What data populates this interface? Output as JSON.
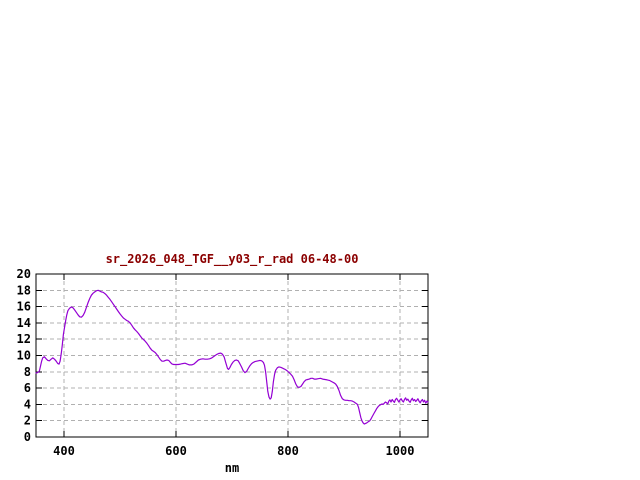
{
  "chart_data": {
    "type": "line",
    "title": "sr_2026_048_TGF__y03_r_rad 06-48-00",
    "xlabel": "nm",
    "ylabel": "",
    "xlim": [
      350,
      1050
    ],
    "ylim": [
      0,
      20
    ],
    "xticks": [
      400,
      600,
      800,
      1000
    ],
    "yticks": [
      0,
      2,
      4,
      6,
      8,
      10,
      12,
      14,
      16,
      18,
      20
    ],
    "grid": true,
    "legend": "none",
    "colors": {
      "line": "#9400d3",
      "title": "#8b0000",
      "axis_text": "#000000",
      "frame": "#000000",
      "grid": "#b0b0b0",
      "background": "#ffffff"
    },
    "series": [
      {
        "name": "sr_2026_048_TGF__y03_r_rad",
        "color": "#9400d3",
        "points": [
          [
            350,
            7.85
          ],
          [
            353,
            7.9
          ],
          [
            356,
            8.1
          ],
          [
            358,
            8.7
          ],
          [
            360,
            9.3
          ],
          [
            362,
            9.7
          ],
          [
            365,
            9.85
          ],
          [
            368,
            9.6
          ],
          [
            371,
            9.4
          ],
          [
            374,
            9.35
          ],
          [
            377,
            9.55
          ],
          [
            380,
            9.7
          ],
          [
            383,
            9.55
          ],
          [
            386,
            9.3
          ],
          [
            389,
            9.0
          ],
          [
            391,
            8.95
          ],
          [
            393,
            9.3
          ],
          [
            395,
            10.2
          ],
          [
            397,
            11.3
          ],
          [
            399,
            12.6
          ],
          [
            401,
            13.5
          ],
          [
            403,
            14.3
          ],
          [
            405,
            15.0
          ],
          [
            407,
            15.5
          ],
          [
            410,
            15.8
          ],
          [
            413,
            15.95
          ],
          [
            416,
            15.85
          ],
          [
            419,
            15.6
          ],
          [
            422,
            15.3
          ],
          [
            425,
            15.0
          ],
          [
            428,
            14.75
          ],
          [
            431,
            14.7
          ],
          [
            434,
            14.9
          ],
          [
            437,
            15.3
          ],
          [
            440,
            15.9
          ],
          [
            443,
            16.5
          ],
          [
            446,
            17.0
          ],
          [
            449,
            17.4
          ],
          [
            452,
            17.65
          ],
          [
            455,
            17.8
          ],
          [
            458,
            17.95
          ],
          [
            461,
            18.0
          ],
          [
            464,
            17.9
          ],
          [
            467,
            17.8
          ],
          [
            470,
            17.75
          ],
          [
            473,
            17.6
          ],
          [
            476,
            17.4
          ],
          [
            479,
            17.15
          ],
          [
            482,
            16.9
          ],
          [
            485,
            16.6
          ],
          [
            488,
            16.3
          ],
          [
            491,
            16.0
          ],
          [
            494,
            15.7
          ],
          [
            497,
            15.4
          ],
          [
            500,
            15.1
          ],
          [
            503,
            14.85
          ],
          [
            506,
            14.6
          ],
          [
            509,
            14.45
          ],
          [
            512,
            14.3
          ],
          [
            515,
            14.2
          ],
          [
            518,
            14.0
          ],
          [
            521,
            13.7
          ],
          [
            524,
            13.4
          ],
          [
            527,
            13.15
          ],
          [
            530,
            12.95
          ],
          [
            533,
            12.7
          ],
          [
            536,
            12.4
          ],
          [
            539,
            12.15
          ],
          [
            542,
            11.95
          ],
          [
            545,
            11.75
          ],
          [
            548,
            11.5
          ],
          [
            551,
            11.2
          ],
          [
            554,
            10.9
          ],
          [
            557,
            10.65
          ],
          [
            560,
            10.5
          ],
          [
            563,
            10.35
          ],
          [
            566,
            10.1
          ],
          [
            569,
            9.8
          ],
          [
            572,
            9.5
          ],
          [
            575,
            9.3
          ],
          [
            578,
            9.3
          ],
          [
            581,
            9.4
          ],
          [
            584,
            9.45
          ],
          [
            587,
            9.4
          ],
          [
            590,
            9.15
          ],
          [
            593,
            8.95
          ],
          [
            596,
            8.9
          ],
          [
            600,
            8.9
          ],
          [
            604,
            8.9
          ],
          [
            608,
            8.95
          ],
          [
            612,
            9.0
          ],
          [
            616,
            9.05
          ],
          [
            620,
            8.95
          ],
          [
            624,
            8.85
          ],
          [
            628,
            8.85
          ],
          [
            632,
            8.95
          ],
          [
            636,
            9.2
          ],
          [
            640,
            9.45
          ],
          [
            644,
            9.55
          ],
          [
            648,
            9.6
          ],
          [
            652,
            9.55
          ],
          [
            656,
            9.55
          ],
          [
            660,
            9.6
          ],
          [
            664,
            9.7
          ],
          [
            668,
            9.9
          ],
          [
            672,
            10.1
          ],
          [
            676,
            10.25
          ],
          [
            680,
            10.3
          ],
          [
            683,
            10.15
          ],
          [
            686,
            9.8
          ],
          [
            689,
            9.1
          ],
          [
            692,
            8.4
          ],
          [
            694,
            8.3
          ],
          [
            696,
            8.5
          ],
          [
            699,
            8.9
          ],
          [
            702,
            9.2
          ],
          [
            705,
            9.4
          ],
          [
            708,
            9.45
          ],
          [
            711,
            9.35
          ],
          [
            714,
            9.0
          ],
          [
            717,
            8.6
          ],
          [
            720,
            8.15
          ],
          [
            723,
            7.9
          ],
          [
            726,
            8.05
          ],
          [
            729,
            8.4
          ],
          [
            732,
            8.75
          ],
          [
            735,
            9.0
          ],
          [
            738,
            9.15
          ],
          [
            741,
            9.25
          ],
          [
            744,
            9.3
          ],
          [
            747,
            9.35
          ],
          [
            750,
            9.4
          ],
          [
            753,
            9.35
          ],
          [
            756,
            9.15
          ],
          [
            758,
            8.8
          ],
          [
            760,
            8.0
          ],
          [
            762,
            6.8
          ],
          [
            764,
            5.6
          ],
          [
            766,
            4.9
          ],
          [
            768,
            4.65
          ],
          [
            770,
            4.8
          ],
          [
            772,
            5.6
          ],
          [
            774,
            6.8
          ],
          [
            776,
            7.7
          ],
          [
            778,
            8.2
          ],
          [
            781,
            8.5
          ],
          [
            784,
            8.6
          ],
          [
            787,
            8.55
          ],
          [
            790,
            8.45
          ],
          [
            793,
            8.35
          ],
          [
            796,
            8.25
          ],
          [
            799,
            8.1
          ],
          [
            802,
            7.9
          ],
          [
            805,
            7.7
          ],
          [
            808,
            7.45
          ],
          [
            811,
            7.0
          ],
          [
            814,
            6.5
          ],
          [
            817,
            6.15
          ],
          [
            820,
            6.1
          ],
          [
            823,
            6.2
          ],
          [
            826,
            6.5
          ],
          [
            829,
            6.8
          ],
          [
            832,
            7.0
          ],
          [
            835,
            7.05
          ],
          [
            838,
            7.1
          ],
          [
            841,
            7.2
          ],
          [
            844,
            7.2
          ],
          [
            847,
            7.1
          ],
          [
            850,
            7.1
          ],
          [
            854,
            7.15
          ],
          [
            858,
            7.2
          ],
          [
            862,
            7.1
          ],
          [
            866,
            7.05
          ],
          [
            870,
            7.0
          ],
          [
            874,
            6.95
          ],
          [
            878,
            6.8
          ],
          [
            882,
            6.65
          ],
          [
            885,
            6.5
          ],
          [
            888,
            6.2
          ],
          [
            891,
            5.7
          ],
          [
            894,
            5.1
          ],
          [
            897,
            4.7
          ],
          [
            900,
            4.55
          ],
          [
            903,
            4.5
          ],
          [
            906,
            4.5
          ],
          [
            909,
            4.45
          ],
          [
            912,
            4.45
          ],
          [
            915,
            4.4
          ],
          [
            918,
            4.3
          ],
          [
            921,
            4.15
          ],
          [
            924,
            4.0
          ],
          [
            926,
            3.6
          ],
          [
            928,
            3.0
          ],
          [
            930,
            2.4
          ],
          [
            932,
            2.0
          ],
          [
            934,
            1.75
          ],
          [
            936,
            1.6
          ],
          [
            938,
            1.65
          ],
          [
            940,
            1.7
          ],
          [
            942,
            1.8
          ],
          [
            944,
            1.9
          ],
          [
            946,
            2.0
          ],
          [
            948,
            2.2
          ],
          [
            950,
            2.45
          ],
          [
            952,
            2.7
          ],
          [
            954,
            2.95
          ],
          [
            956,
            3.2
          ],
          [
            958,
            3.45
          ],
          [
            960,
            3.65
          ],
          [
            962,
            3.8
          ],
          [
            964,
            3.9
          ],
          [
            966,
            4.0
          ],
          [
            968,
            4.05
          ],
          [
            970,
            4.0
          ],
          [
            972,
            4.15
          ],
          [
            974,
            4.3
          ],
          [
            976,
            4.2
          ],
          [
            978,
            4.05
          ],
          [
            980,
            4.4
          ],
          [
            982,
            4.55
          ],
          [
            984,
            4.3
          ],
          [
            986,
            4.6
          ],
          [
            988,
            4.4
          ],
          [
            990,
            4.25
          ],
          [
            992,
            4.6
          ],
          [
            994,
            4.75
          ],
          [
            996,
            4.5
          ],
          [
            998,
            4.3
          ],
          [
            1000,
            4.55
          ],
          [
            1002,
            4.7
          ],
          [
            1004,
            4.45
          ],
          [
            1006,
            4.3
          ],
          [
            1008,
            4.6
          ],
          [
            1010,
            4.8
          ],
          [
            1012,
            4.5
          ],
          [
            1014,
            4.65
          ],
          [
            1016,
            4.4
          ],
          [
            1018,
            4.25
          ],
          [
            1020,
            4.55
          ],
          [
            1022,
            4.75
          ],
          [
            1024,
            4.45
          ],
          [
            1026,
            4.6
          ],
          [
            1028,
            4.35
          ],
          [
            1030,
            4.5
          ],
          [
            1032,
            4.7
          ],
          [
            1034,
            4.4
          ],
          [
            1036,
            4.2
          ],
          [
            1038,
            4.45
          ],
          [
            1040,
            4.6
          ],
          [
            1042,
            4.3
          ],
          [
            1044,
            4.5
          ],
          [
            1046,
            4.15
          ],
          [
            1048,
            4.4
          ],
          [
            1050,
            4.3
          ]
        ]
      }
    ]
  }
}
